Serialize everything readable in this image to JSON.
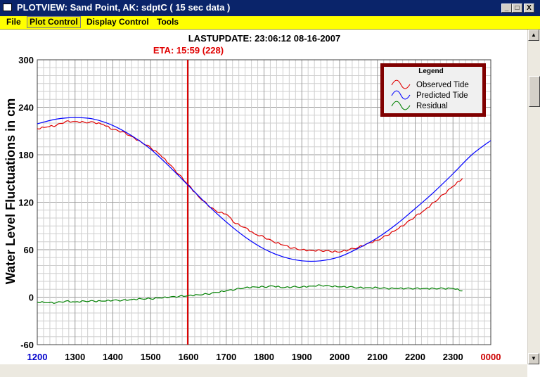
{
  "window": {
    "title": "PLOTVIEW:  Sand Point, AK: sdptC ( 15 sec data )",
    "minimize_glyph": "_",
    "maximize_glyph": "□",
    "close_glyph": "X"
  },
  "menu": {
    "items": [
      {
        "label": "File"
      },
      {
        "label": "Plot Control"
      },
      {
        "label": "Display Control"
      },
      {
        "label": "Tools"
      }
    ],
    "active_index": 1
  },
  "plot": {
    "lastupdate": "LASTUPDATE: 23:06:12  08-16-2007",
    "eta": "ETA: 15:59 (228)",
    "ylabel": "Water Level Fluctuations in cm"
  },
  "colors": {
    "observed": "#e00000",
    "predicted": "#0000ff",
    "residual": "#008000",
    "eta_line": "#e00000",
    "legend_border": "#800000",
    "first_tick": "#0000cc",
    "last_tick": "#cc0000"
  },
  "chart_data": {
    "type": "line",
    "title": "",
    "xlabel": "",
    "ylabel": "Water Level Fluctuations in cm",
    "x_unit": "hours since 12:00 day 228",
    "xlim": [
      0,
      12
    ],
    "ylim": [
      -60,
      300
    ],
    "y_ticks": [
      -60,
      0,
      60,
      120,
      180,
      240,
      300
    ],
    "x_ticks": [
      {
        "hour": "1200",
        "day": "228"
      },
      {
        "hour": "1300",
        "day": "228"
      },
      {
        "hour": "1400",
        "day": "228"
      },
      {
        "hour": "1500",
        "day": "228"
      },
      {
        "hour": "1600",
        "day": "228"
      },
      {
        "hour": "1700",
        "day": "228"
      },
      {
        "hour": "1800",
        "day": "228"
      },
      {
        "hour": "1900",
        "day": "228"
      },
      {
        "hour": "2000",
        "day": "228"
      },
      {
        "hour": "2100",
        "day": "228"
      },
      {
        "hour": "2200",
        "day": "228"
      },
      {
        "hour": "2300",
        "day": "228"
      },
      {
        "hour": "0000",
        "day": "229"
      }
    ],
    "grid": true,
    "legend": {
      "title": "Legend",
      "position": "top-right"
    },
    "eta_x": 3.98,
    "series": [
      {
        "name": "Observed Tide",
        "x": [
          0,
          0.25,
          0.5,
          0.75,
          1,
          1.25,
          1.5,
          1.75,
          2,
          2.25,
          2.5,
          2.75,
          3,
          3.25,
          3.5,
          3.75,
          4,
          4.25,
          4.5,
          4.75,
          5,
          5.25,
          5.5,
          5.75,
          6,
          6.25,
          6.5,
          6.75,
          7,
          7.25,
          7.5,
          7.75,
          8,
          8.25,
          8.5,
          8.75,
          9,
          9.25,
          9.5,
          9.75,
          10,
          10.25,
          10.5,
          10.75,
          11,
          11.25
        ],
        "y": [
          213,
          215,
          217,
          222,
          222,
          221,
          221,
          218,
          212,
          209,
          203,
          196,
          189,
          180,
          168,
          155,
          142,
          128,
          117,
          108,
          105,
          93,
          88,
          80,
          76,
          70,
          66,
          62,
          60,
          59,
          59,
          58,
          57,
          60,
          63,
          68,
          72,
          78,
          85,
          93,
          102,
          110,
          120,
          130,
          140,
          150
        ]
      },
      {
        "name": "Predicted Tide",
        "x": [
          0,
          0.5,
          1,
          1.5,
          2,
          2.5,
          3,
          3.5,
          4,
          4.5,
          5,
          5.5,
          6,
          6.5,
          7,
          7.5,
          8,
          8.5,
          9,
          9.5,
          10,
          10.5,
          11,
          11.5,
          12
        ],
        "y": [
          219,
          225,
          227,
          225,
          217,
          204,
          187,
          165,
          141,
          117,
          95,
          76,
          61,
          51,
          46,
          46,
          51,
          62,
          75,
          92,
          112,
          133,
          156,
          180,
          198
        ]
      },
      {
        "name": "Residual",
        "x": [
          0,
          0.25,
          0.5,
          0.75,
          1,
          1.25,
          1.5,
          1.75,
          2,
          2.25,
          2.5,
          2.75,
          3,
          3.25,
          3.5,
          3.75,
          4,
          4.25,
          4.5,
          4.75,
          5,
          5.25,
          5.5,
          5.75,
          6,
          6.25,
          6.5,
          6.75,
          7,
          7.25,
          7.5,
          7.75,
          8,
          8.25,
          8.5,
          8.75,
          9,
          9.25,
          9.5,
          9.75,
          10,
          10.25,
          10.5,
          10.75,
          11,
          11.25
        ],
        "y": [
          -6,
          -7,
          -7,
          -5,
          -6,
          -5,
          -5,
          -5,
          -4,
          -4,
          -3,
          -2,
          -2,
          -1,
          0,
          1,
          2,
          3,
          4,
          6,
          8,
          10,
          12,
          13,
          13,
          14,
          12,
          13,
          13,
          14,
          15,
          14,
          13,
          13,
          12,
          12,
          12,
          11,
          11,
          11,
          11,
          11,
          11,
          11,
          11,
          8
        ]
      }
    ]
  }
}
